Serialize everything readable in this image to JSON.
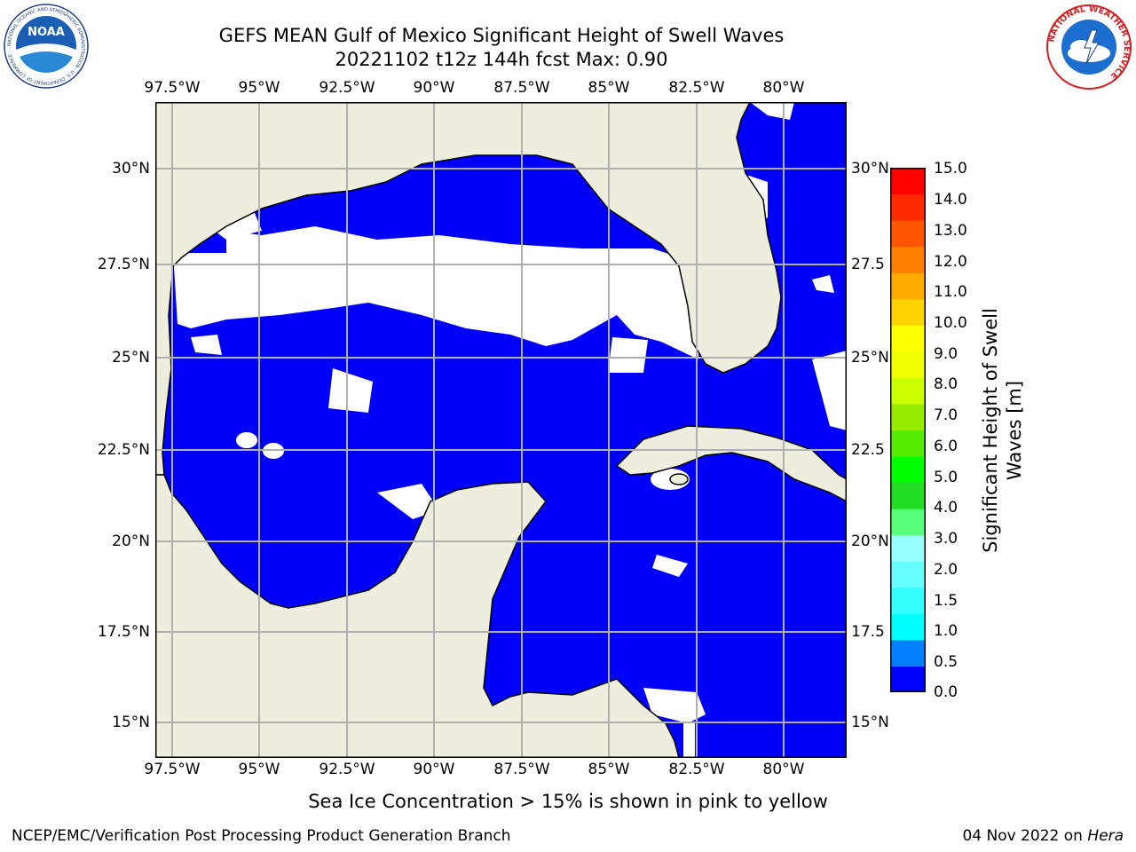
{
  "header": {
    "title_line1": "GEFS MEAN Gulf of Mexico Significant Height of Swell Waves",
    "title_line2": "20221102 t12z 144h fcst   Max: 0.90"
  },
  "map": {
    "lon_ticks": [
      "97.5°W",
      "95°W",
      "92.5°W",
      "90°W",
      "87.5°W",
      "85°W",
      "82.5°W",
      "80°W"
    ],
    "lat_ticks_left": [
      "30°N",
      "27.5°N",
      "25°N",
      "22.5°N",
      "20°N",
      "17.5°N",
      "15°N"
    ],
    "lat_ticks_right": [
      "30°N",
      "27.5",
      "25°N",
      "22.5",
      "20°N",
      "17.5",
      "15°N"
    ],
    "land_color": "#eeeedf",
    "ocean_low_color": "#0000f8",
    "ocean_mid_color": "#007fff",
    "gridlines": true
  },
  "colorbar": {
    "label_line1": "Significant Height of Swell",
    "label_line2": "Waves [m]",
    "ticks": [
      "15.0",
      "14.0",
      "13.0",
      "12.0",
      "11.0",
      "10.0",
      "9.0",
      "8.0",
      "7.0",
      "6.0",
      "5.0",
      "4.0",
      "3.0",
      "2.0",
      "1.5",
      "1.0",
      "0.5",
      "0.0"
    ],
    "colors_bottom_to_top": [
      "#0000ff",
      "#0080ff",
      "#00ffff",
      "#33ffff",
      "#66ffff",
      "#99ffff",
      "#55ff77",
      "#22dd22",
      "#00ff00",
      "#55ee00",
      "#99ee00",
      "#ccff00",
      "#eeff00",
      "#ffff00",
      "#ffd400",
      "#ffaa00",
      "#ff8000",
      "#ff5500",
      "#ff2a00",
      "#ff0000"
    ]
  },
  "notes": {
    "sea_ice": "Sea Ice Concentration > 15% is shown in pink to yellow"
  },
  "footer": {
    "left": "NCEP/EMC/Verification Post Processing Product Generation Branch",
    "right_prefix": "04 Nov 2022 on ",
    "right_italic": "Hera"
  },
  "logos": {
    "noaa_text": "NOAA",
    "noaa_ring": "NATIONAL OCEANIC AND ATMOSPHERIC ADMINISTRATION · U.S. DEPARTMENT OF COMMERCE",
    "nws_ring": "NATIONAL WEATHER SERVICE"
  }
}
